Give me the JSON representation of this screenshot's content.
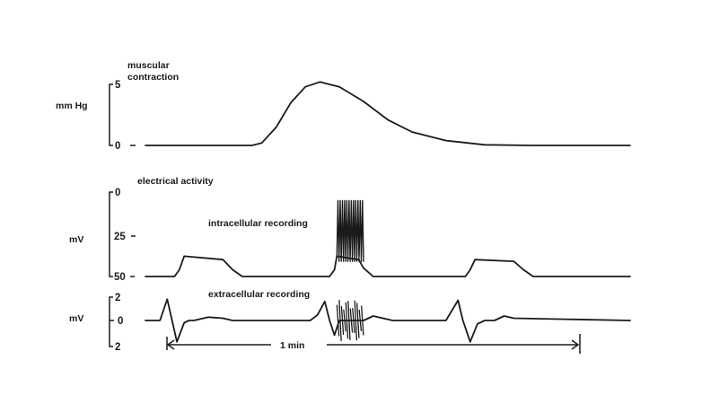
{
  "chart_data": [
    {
      "type": "line",
      "title": "muscular contraction",
      "ylabel": "mm Hg",
      "yticks": [
        "5",
        "0"
      ],
      "ylim": [
        0,
        5
      ],
      "series": [
        {
          "x": [
            0,
            22,
            24,
            27,
            30,
            33,
            36,
            40,
            45,
            50,
            55,
            62,
            70,
            80,
            100
          ],
          "y": [
            0,
            0,
            0.2,
            1.5,
            3.5,
            4.8,
            5.2,
            4.8,
            3.6,
            2.1,
            1.1,
            0.4,
            0.05,
            0,
            0
          ]
        }
      ]
    },
    {
      "type": "line",
      "title": "electrical activity",
      "annotation": "intracellular recording",
      "ylabel": "mV",
      "yticks": [
        "0",
        "25",
        "50"
      ],
      "ylim": [
        -50,
        0
      ],
      "series": [
        {
          "x": [
            0,
            6,
            7,
            8,
            16,
            18,
            20,
            38,
            39,
            39.5,
            44,
            45,
            47,
            66,
            67,
            68,
            76,
            78,
            80,
            100
          ],
          "y": [
            -50,
            -50,
            -46,
            -38,
            -40,
            -46,
            -50,
            -50,
            -46,
            -38,
            -40,
            -45,
            -50,
            -50,
            -46,
            -40,
            -41,
            -46,
            -50,
            -50
          ]
        }
      ],
      "burst": {
        "x_start": 39.5,
        "x_end": 45,
        "spikes": 12,
        "peak_mV": -5,
        "trough_mV": -38
      }
    },
    {
      "type": "line",
      "annotation": "extracellular recording",
      "ylabel": "mV",
      "yticks": [
        "2",
        "0",
        "2"
      ],
      "ylim": [
        -2,
        2
      ],
      "series": [
        {
          "x": [
            0,
            3,
            4.5,
            5.5,
            6.5,
            8,
            9,
            10,
            13,
            16,
            18,
            34,
            35.5,
            37,
            38,
            39,
            40,
            45,
            47,
            49,
            51,
            62,
            64.5,
            65.5,
            67,
            68.5,
            70,
            72,
            74,
            76,
            100
          ],
          "y": [
            0,
            0,
            1.9,
            0,
            -1.9,
            -0.2,
            0,
            0,
            0.3,
            0.2,
            0,
            0,
            0.5,
            1.7,
            0,
            -1.3,
            0,
            0,
            0.4,
            0.2,
            0,
            0,
            1.8,
            0,
            -1.9,
            -0.3,
            0,
            0,
            0.4,
            0.2,
            0
          ]
        }
      ],
      "burst": {
        "x_start": 39.5,
        "x_end": 45,
        "spikes": 12,
        "amplitude_mV": 1.8
      }
    }
  ],
  "time_scale": {
    "label": "1 min"
  }
}
